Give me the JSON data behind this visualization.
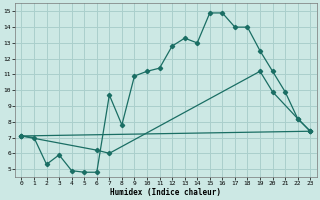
{
  "xlabel": "Humidex (Indice chaleur)",
  "bg_color": "#cce8e4",
  "grid_color": "#aacfcc",
  "line_color": "#1a6e64",
  "xlim": [
    -0.5,
    23.5
  ],
  "ylim": [
    4.5,
    15.5
  ],
  "xticks": [
    0,
    1,
    2,
    3,
    4,
    5,
    6,
    7,
    8,
    9,
    10,
    11,
    12,
    13,
    14,
    15,
    16,
    17,
    18,
    19,
    20,
    21,
    22,
    23
  ],
  "yticks": [
    5,
    6,
    7,
    8,
    9,
    10,
    11,
    12,
    13,
    14,
    15
  ],
  "series1_x": [
    0,
    1,
    2,
    3,
    4,
    5,
    6,
    7,
    8,
    9,
    10,
    11,
    12,
    13,
    14,
    15,
    16,
    17,
    18,
    19,
    20,
    21,
    22,
    23
  ],
  "series1_y": [
    7.1,
    7.0,
    5.3,
    5.9,
    4.9,
    4.8,
    4.8,
    9.7,
    7.8,
    10.9,
    11.2,
    11.4,
    12.8,
    13.3,
    13.0,
    14.9,
    14.9,
    14.0,
    14.0,
    12.5,
    11.2,
    9.9,
    8.2,
    7.4
  ],
  "series2_x": [
    0,
    6,
    7,
    19,
    20,
    22,
    23
  ],
  "series2_y": [
    7.1,
    6.2,
    6.0,
    11.2,
    9.9,
    8.2,
    7.4
  ],
  "series3_x": [
    0,
    23
  ],
  "series3_y": [
    7.1,
    7.4
  ]
}
